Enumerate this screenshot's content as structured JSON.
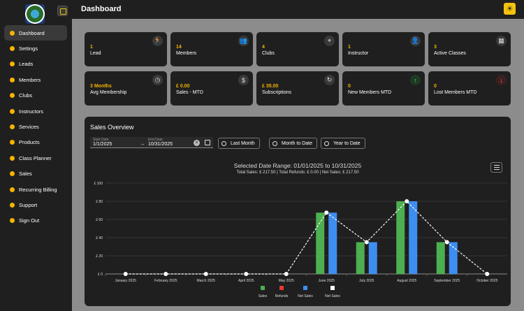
{
  "header": {
    "title": "Dashboard"
  },
  "sidebar": {
    "items": [
      {
        "label": "Dashboard",
        "icon": "chart-icon",
        "active": true
      },
      {
        "label": "Settings",
        "icon": "gear-icon"
      },
      {
        "label": "Leads",
        "icon": "run-icon"
      },
      {
        "label": "Members",
        "icon": "people-icon"
      },
      {
        "label": "Clubs",
        "icon": "location-icon"
      },
      {
        "label": "Instructors",
        "icon": "person-icon"
      },
      {
        "label": "Services",
        "icon": "briefcase-icon"
      },
      {
        "label": "Products",
        "icon": "box-icon"
      },
      {
        "label": "Class Planner",
        "icon": "planner-icon"
      },
      {
        "label": "Sales",
        "icon": "dollar-icon"
      },
      {
        "label": "Recurring Billing",
        "icon": "repeat-icon"
      },
      {
        "label": "Support",
        "icon": "help-icon"
      },
      {
        "label": "Sign Out",
        "icon": "logout-icon"
      }
    ]
  },
  "cards": [
    {
      "value": "1",
      "label": "Lead",
      "icon": "run-icon",
      "glyph": "🏃"
    },
    {
      "value": "14",
      "label": "Members",
      "icon": "people-icon",
      "glyph": "👥"
    },
    {
      "value": "4",
      "label": "Clubs",
      "icon": "location-icon",
      "glyph": "⌖"
    },
    {
      "value": "1",
      "label": "Instructor",
      "icon": "person-icon",
      "glyph": "👤"
    },
    {
      "value": "3",
      "label": "Active Classes",
      "icon": "calendar-icon",
      "glyph": "▦"
    },
    {
      "value": "3 Months",
      "label": "Avg Membership",
      "icon": "clock-icon",
      "glyph": "◷"
    },
    {
      "value": "£ 0.00",
      "label": "Sales - MTD",
      "icon": "dollar-icon",
      "glyph": "$"
    },
    {
      "value": "£ 35.00",
      "label": "Subscriptions",
      "icon": "refresh-icon",
      "glyph": "↻"
    },
    {
      "value": "0",
      "label": "New Members MTD",
      "icon": "arrow-up-icon",
      "glyph": "↑"
    },
    {
      "value": "0",
      "label": "Lost Members MTD",
      "icon": "arrow-down-icon",
      "glyph": "↓"
    }
  ],
  "sales": {
    "title": "Sales Overview",
    "start_label": "Start Date",
    "start_value": "1/1/2025",
    "end_label": "End Date",
    "end_value": "10/31/2025",
    "buttons": [
      "Last Month",
      "Month to Date",
      "Year to Date"
    ]
  },
  "colors": {
    "accent": "#f4b400",
    "sales": "#4caf50",
    "refunds": "#e53935",
    "net_sales": "#3d8ef0",
    "net_sales_line": "#ffffff"
  },
  "chart_data": {
    "type": "bar",
    "title": "Selected Date Range: 01/01/2025 to 10/31/2025",
    "subtitle": "Total Sales: £ 217.50 | Total Refunds: £ 0.00 | Net Sales: £ 217.50",
    "categories": [
      "January 2025",
      "February 2025",
      "March 2025",
      "April 2025",
      "May 2025",
      "June 2025",
      "July 2025",
      "August 2025",
      "September 2025",
      "October 2025"
    ],
    "series": [
      {
        "name": "Sales",
        "type": "bar",
        "values": [
          0,
          0,
          0,
          0,
          0,
          67.5,
          35,
          80,
          35,
          0
        ]
      },
      {
        "name": "Refunds",
        "type": "bar",
        "values": [
          0,
          0,
          0,
          0,
          0,
          0,
          0,
          0,
          0,
          0
        ]
      },
      {
        "name": "Net Sales",
        "type": "bar",
        "values": [
          0,
          0,
          0,
          0,
          0,
          67.5,
          35,
          80,
          35,
          0
        ]
      },
      {
        "name": "Net Sales",
        "type": "line",
        "values": [
          0,
          0,
          0,
          0,
          0,
          67.5,
          35,
          80,
          35,
          0
        ]
      }
    ],
    "yticks": [
      "£ 0",
      "£ 20",
      "£ 40",
      "£ 60",
      "£ 80",
      "£ 100"
    ],
    "ylim": [
      0,
      100
    ],
    "grid": true,
    "legend": "bottom"
  }
}
